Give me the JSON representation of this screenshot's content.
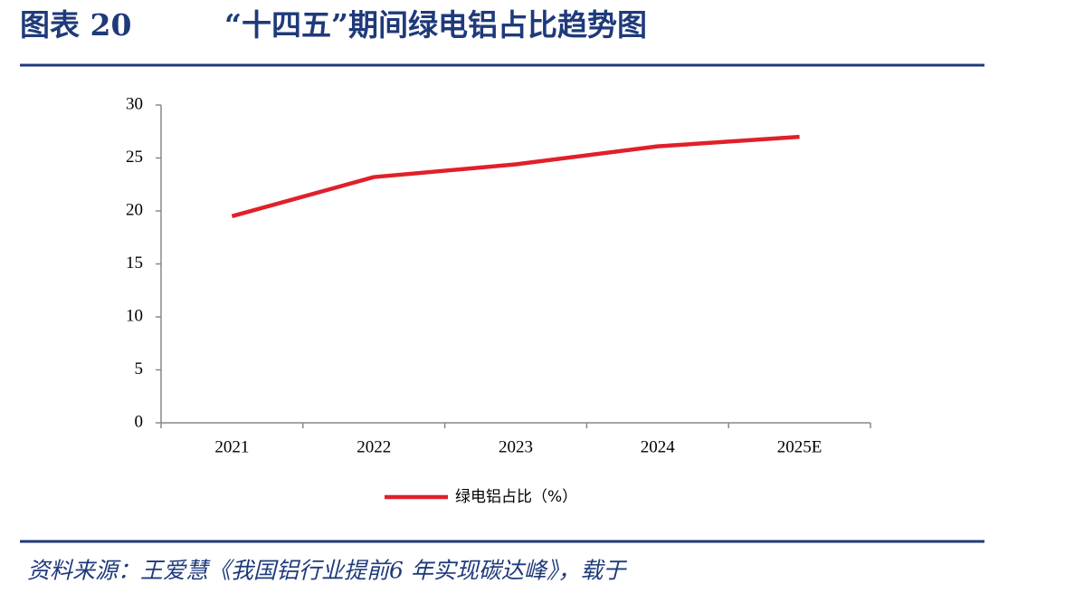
{
  "chart_data": {
    "type": "line",
    "figure_label": "图表 20",
    "title": "“十四五”期间绿电铝占比趋势图",
    "categories": [
      "2021",
      "2022",
      "2023",
      "2024",
      "2025E"
    ],
    "series": [
      {
        "name": "绿电铝占比（%）",
        "color": "#e0202a",
        "values": [
          19.5,
          23.2,
          24.4,
          26.1,
          27.0
        ]
      }
    ],
    "ylim": [
      0,
      30
    ],
    "yticks": [
      0,
      5,
      10,
      15,
      20,
      25,
      30
    ],
    "grid": false,
    "legend": "bottom",
    "source": "资料来源：王爱慧《我国铝行业提前6 年实现碳达峰》，载于"
  }
}
